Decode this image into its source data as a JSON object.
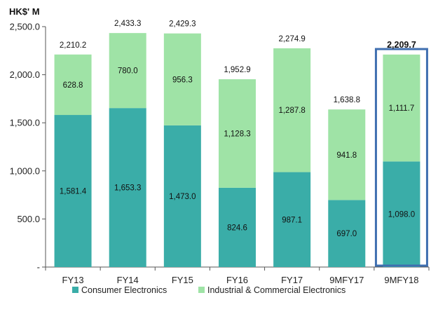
{
  "chart_data": {
    "type": "bar",
    "stacked": true,
    "unit_label": "HK$' M",
    "categories": [
      "FY13",
      "FY14",
      "FY15",
      "FY16",
      "FY17",
      "9MFY17",
      "9MFY18"
    ],
    "series": [
      {
        "name": "Consumer Electronics",
        "color": "#3aada8",
        "values": [
          1581.4,
          1653.3,
          1473.0,
          824.6,
          987.1,
          697.0,
          1098.0
        ],
        "labels": [
          "1,581.4",
          "1,653.3",
          "1,473.0",
          "824.6",
          "987.1",
          "697.0",
          "1,098.0"
        ]
      },
      {
        "name": "Industrial & Commercial Electronics",
        "color": "#9fe3a6",
        "values": [
          628.8,
          780.0,
          956.3,
          1128.3,
          1287.8,
          941.8,
          1111.7
        ],
        "labels": [
          "628.8",
          "780.0",
          "956.3",
          "1,128.3",
          "1,287.8",
          "941.8",
          "1,111.7"
        ]
      }
    ],
    "totals": [
      2210.2,
      2433.3,
      2429.3,
      1952.9,
      2274.9,
      1638.8,
      2209.7
    ],
    "total_labels": [
      "2,210.2",
      "2,433.3",
      "2,429.3",
      "1,952.9",
      "2,274.9",
      "1,638.8",
      "2,209.7"
    ],
    "highlight_category": "9MFY18",
    "highlight_color": "#3f6fb0",
    "ylim": [
      0,
      2500
    ],
    "yticks": [
      0,
      500,
      1000,
      1500,
      2000,
      2500
    ],
    "ytick_labels": [
      "-",
      "500.0",
      "1,000.0",
      "1,500.0",
      "2,000.0",
      "2,500.0"
    ],
    "legend_position": "bottom"
  }
}
